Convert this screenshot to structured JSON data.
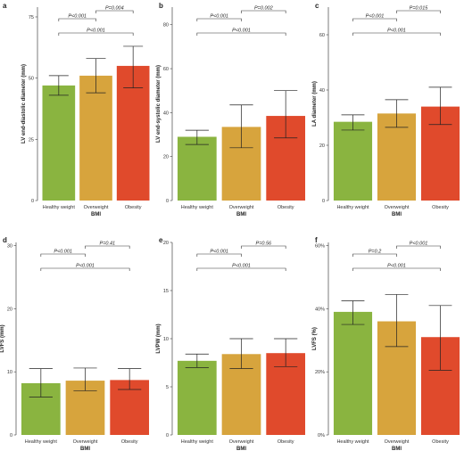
{
  "figure": {
    "xlabel": "BMI",
    "categories": [
      "Healthy weight",
      "Overweight",
      "Obesity"
    ],
    "colors": [
      "#8ab440",
      "#d7a43d",
      "#e04a2c"
    ]
  },
  "chart_data": [
    {
      "type": "bar",
      "letter": "a",
      "categories": [
        "Healthy weight",
        "Overweight",
        "Obesity"
      ],
      "values": [
        47,
        51,
        55
      ],
      "error": [
        [
          43,
          51
        ],
        [
          44,
          58
        ],
        [
          46,
          63
        ]
      ],
      "ylim": [
        0,
        79
      ],
      "yticks": [
        0,
        25,
        50,
        75
      ],
      "ylabel": "LV end-diastolic diameter (mm)",
      "xlabel": "BMI",
      "comparisons": [
        {
          "from": 0,
          "to": 1,
          "label": "P<0.001",
          "level": 1
        },
        {
          "from": 1,
          "to": 2,
          "label": "P=0.004",
          "level": 2
        },
        {
          "from": 0,
          "to": 2,
          "label": "P<0.001",
          "level": 0
        }
      ]
    },
    {
      "type": "bar",
      "letter": "b",
      "categories": [
        "Healthy weight",
        "Overweight",
        "Obesity"
      ],
      "values": [
        29,
        33.5,
        38.5
      ],
      "error": [
        [
          25.5,
          32
        ],
        [
          24,
          43.5
        ],
        [
          28.5,
          50
        ]
      ],
      "ylim": [
        0,
        88
      ],
      "yticks": [
        0,
        20,
        40,
        60,
        80
      ],
      "ylabel": "LV end-systolic diameter (mm)",
      "xlabel": "BMI",
      "comparisons": [
        {
          "from": 0,
          "to": 1,
          "label": "P<0.001",
          "level": 1
        },
        {
          "from": 1,
          "to": 2,
          "label": "P=0.002",
          "level": 2
        },
        {
          "from": 0,
          "to": 2,
          "label": "P<0.001",
          "level": 0
        }
      ]
    },
    {
      "type": "bar",
      "letter": "c",
      "categories": [
        "Healthy weight",
        "Overweight",
        "Obesity"
      ],
      "values": [
        28.5,
        31.5,
        34
      ],
      "error": [
        [
          25.5,
          31
        ],
        [
          26.5,
          36.5
        ],
        [
          27.5,
          41
        ]
      ],
      "ylim": [
        0,
        70
      ],
      "yticks": [
        0,
        20,
        40,
        60
      ],
      "ylabel": "LA diameter (mm)",
      "xlabel": "BMI",
      "comparisons": [
        {
          "from": 0,
          "to": 1,
          "label": "P<0.001",
          "level": 1
        },
        {
          "from": 1,
          "to": 2,
          "label": "P=0.015",
          "level": 2
        },
        {
          "from": 0,
          "to": 2,
          "label": "P<0.001",
          "level": 0
        }
      ]
    },
    {
      "type": "bar",
      "letter": "d",
      "categories": [
        "Healthy weight",
        "Overweight",
        "Obesity"
      ],
      "values": [
        8.2,
        8.6,
        8.7
      ],
      "error": [
        [
          6.0,
          10.5
        ],
        [
          7.0,
          10.6
        ],
        [
          7.2,
          10.5
        ]
      ],
      "ylim": [
        0,
        30.5
      ],
      "yticks": [
        0,
        10,
        20,
        30
      ],
      "ylabel": "LVFS (mm)",
      "xlabel": "BMI",
      "comparisons": [
        {
          "from": 0,
          "to": 1,
          "label": "P<0.001",
          "level": 1
        },
        {
          "from": 1,
          "to": 2,
          "label": "P=0.41",
          "level": 2
        },
        {
          "from": 0,
          "to": 2,
          "label": "P<0.001",
          "level": 0
        }
      ]
    },
    {
      "type": "bar",
      "letter": "e",
      "categories": [
        "Healthy weight",
        "Overweight",
        "Obesity"
      ],
      "values": [
        7.7,
        8.4,
        8.5
      ],
      "error": [
        [
          7.0,
          8.4
        ],
        [
          6.9,
          10.0
        ],
        [
          7.1,
          10.0
        ]
      ],
      "ylim": [
        0,
        20
      ],
      "yticks": [
        0,
        5,
        10,
        15,
        20
      ],
      "ylabel": "LVPW (mm)",
      "xlabel": "BMI",
      "comparisons": [
        {
          "from": 0,
          "to": 1,
          "label": "P<0.001",
          "level": 1
        },
        {
          "from": 1,
          "to": 2,
          "label": "P=0.56",
          "level": 2
        },
        {
          "from": 0,
          "to": 2,
          "label": "P<0.001",
          "level": 0
        }
      ]
    },
    {
      "type": "bar",
      "letter": "f",
      "categories": [
        "Healthy weight",
        "Overweight",
        "Obesity"
      ],
      "values": [
        39,
        36,
        31
      ],
      "error": [
        [
          35,
          42.5
        ],
        [
          28,
          44.5
        ],
        [
          20.5,
          41
        ]
      ],
      "ylim": [
        0,
        61
      ],
      "yticks": [
        0,
        20,
        40,
        60
      ],
      "ytick_suffix": "%",
      "ylabel": "LVFS (%)",
      "xlabel": "BMI",
      "comparisons": [
        {
          "from": 0,
          "to": 1,
          "label": "P=0.2",
          "level": 1
        },
        {
          "from": 1,
          "to": 2,
          "label": "P<0.001",
          "level": 2
        },
        {
          "from": 0,
          "to": 2,
          "label": "P<0.001",
          "level": 0
        }
      ]
    }
  ]
}
